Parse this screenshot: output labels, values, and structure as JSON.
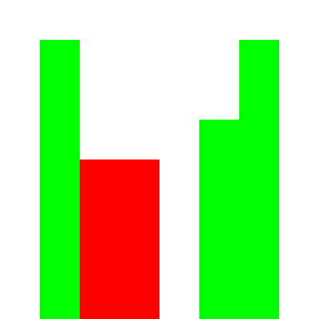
{
  "colors": {
    "background": "#ffffff",
    "green": "#00ff00",
    "red": "#ff0000"
  }
}
